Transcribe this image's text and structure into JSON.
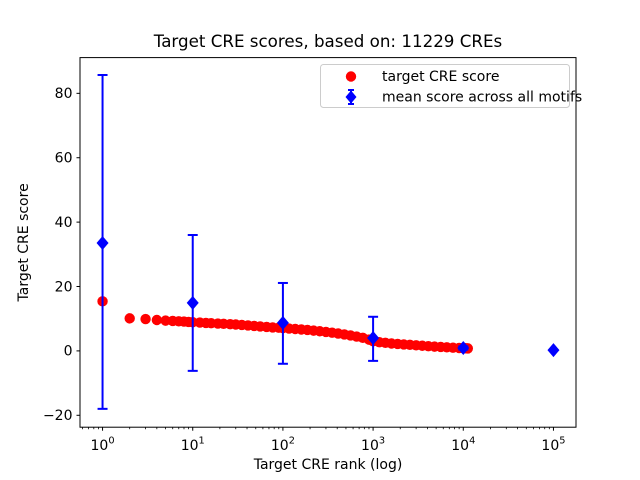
{
  "chart_data": {
    "type": "scatter",
    "title": "Target CRE scores, based on: 11229 CREs",
    "xlabel": "Target CRE rank (log)",
    "ylabel": "Target CRE score",
    "xscale": "log",
    "xlim": [
      0.5623,
      177828
    ],
    "ylim": [
      -23.7,
      91.1
    ],
    "grid": false,
    "colors": {
      "target": "#ff0000",
      "mean": "#0000ff",
      "axis": "#000000",
      "legend_border": "#cccccc"
    },
    "xticks": [
      {
        "value": 1,
        "base": "10",
        "exp": "0"
      },
      {
        "value": 10,
        "base": "10",
        "exp": "1"
      },
      {
        "value": 100,
        "base": "10",
        "exp": "2"
      },
      {
        "value": 1000,
        "base": "10",
        "exp": "3"
      },
      {
        "value": 10000,
        "base": "10",
        "exp": "4"
      },
      {
        "value": 100000,
        "base": "10",
        "exp": "5"
      }
    ],
    "yticks": [
      {
        "value": -20,
        "label": "−20"
      },
      {
        "value": 0,
        "label": "0"
      },
      {
        "value": 20,
        "label": "20"
      },
      {
        "value": 40,
        "label": "40"
      },
      {
        "value": 60,
        "label": "60"
      },
      {
        "value": 80,
        "label": "80"
      }
    ],
    "legend": {
      "position": "upper right",
      "entries": [
        {
          "label": "target CRE score",
          "marker": "circle",
          "color": "#ff0000"
        },
        {
          "label": "mean score across all motifs",
          "marker": "diamond-errorbar",
          "color": "#0000ff"
        }
      ]
    },
    "series": [
      {
        "name": "target CRE score",
        "marker": "circle",
        "color": "#ff0000",
        "n_total_points_depicted": 11229,
        "points": [
          [
            1,
            15.4
          ],
          [
            2,
            10.1
          ],
          [
            3,
            9.9
          ],
          [
            4,
            9.6
          ],
          [
            5,
            9.4
          ],
          [
            6,
            9.3
          ],
          [
            7,
            9.2
          ],
          [
            8,
            9.1
          ],
          [
            9,
            9.0
          ],
          [
            10,
            8.9
          ],
          [
            12,
            8.8
          ],
          [
            14,
            8.7
          ],
          [
            16,
            8.6
          ],
          [
            19,
            8.5
          ],
          [
            22,
            8.4
          ],
          [
            26,
            8.3
          ],
          [
            30,
            8.2
          ],
          [
            35,
            8.05
          ],
          [
            41,
            7.9
          ],
          [
            48,
            7.75
          ],
          [
            56,
            7.6
          ],
          [
            66,
            7.45
          ],
          [
            77,
            7.3
          ],
          [
            90,
            7.2
          ],
          [
            100,
            7.1
          ],
          [
            117,
            6.95
          ],
          [
            137,
            6.8
          ],
          [
            160,
            6.65
          ],
          [
            187,
            6.5
          ],
          [
            219,
            6.3
          ],
          [
            256,
            6.1
          ],
          [
            300,
            5.9
          ],
          [
            351,
            5.65
          ],
          [
            410,
            5.4
          ],
          [
            480,
            5.1
          ],
          [
            562,
            4.8
          ],
          [
            657,
            4.45
          ],
          [
            769,
            4.05
          ],
          [
            900,
            3.5
          ],
          [
            1000,
            3.0
          ],
          [
            1170,
            2.7
          ],
          [
            1370,
            2.5
          ],
          [
            1600,
            2.3
          ],
          [
            1870,
            2.15
          ],
          [
            2190,
            2.0
          ],
          [
            2560,
            1.9
          ],
          [
            3000,
            1.75
          ],
          [
            3510,
            1.6
          ],
          [
            4100,
            1.45
          ],
          [
            4800,
            1.33
          ],
          [
            5620,
            1.22
          ],
          [
            6570,
            1.1
          ],
          [
            7690,
            1.0
          ],
          [
            9000,
            0.9
          ],
          [
            10000,
            0.85
          ],
          [
            10600,
            0.82
          ],
          [
            11229,
            0.78
          ]
        ]
      },
      {
        "name": "mean score across all motifs",
        "marker": "diamond",
        "color": "#0000ff",
        "points": [
          {
            "x": 1,
            "y": 33.5,
            "lo": -18.0,
            "hi": 85.7
          },
          {
            "x": 10,
            "y": 14.9,
            "lo": -6.2,
            "hi": 36.0
          },
          {
            "x": 100,
            "y": 8.7,
            "lo": -4.0,
            "hi": 21.1
          },
          {
            "x": 1000,
            "y": 4.0,
            "lo": -3.1,
            "hi": 10.6
          },
          {
            "x": 10000,
            "y": 0.9,
            "lo": 0.4,
            "hi": 1.4
          },
          {
            "x": 100000,
            "y": 0.25,
            "lo": 0.25,
            "hi": 0.25
          }
        ]
      }
    ]
  }
}
